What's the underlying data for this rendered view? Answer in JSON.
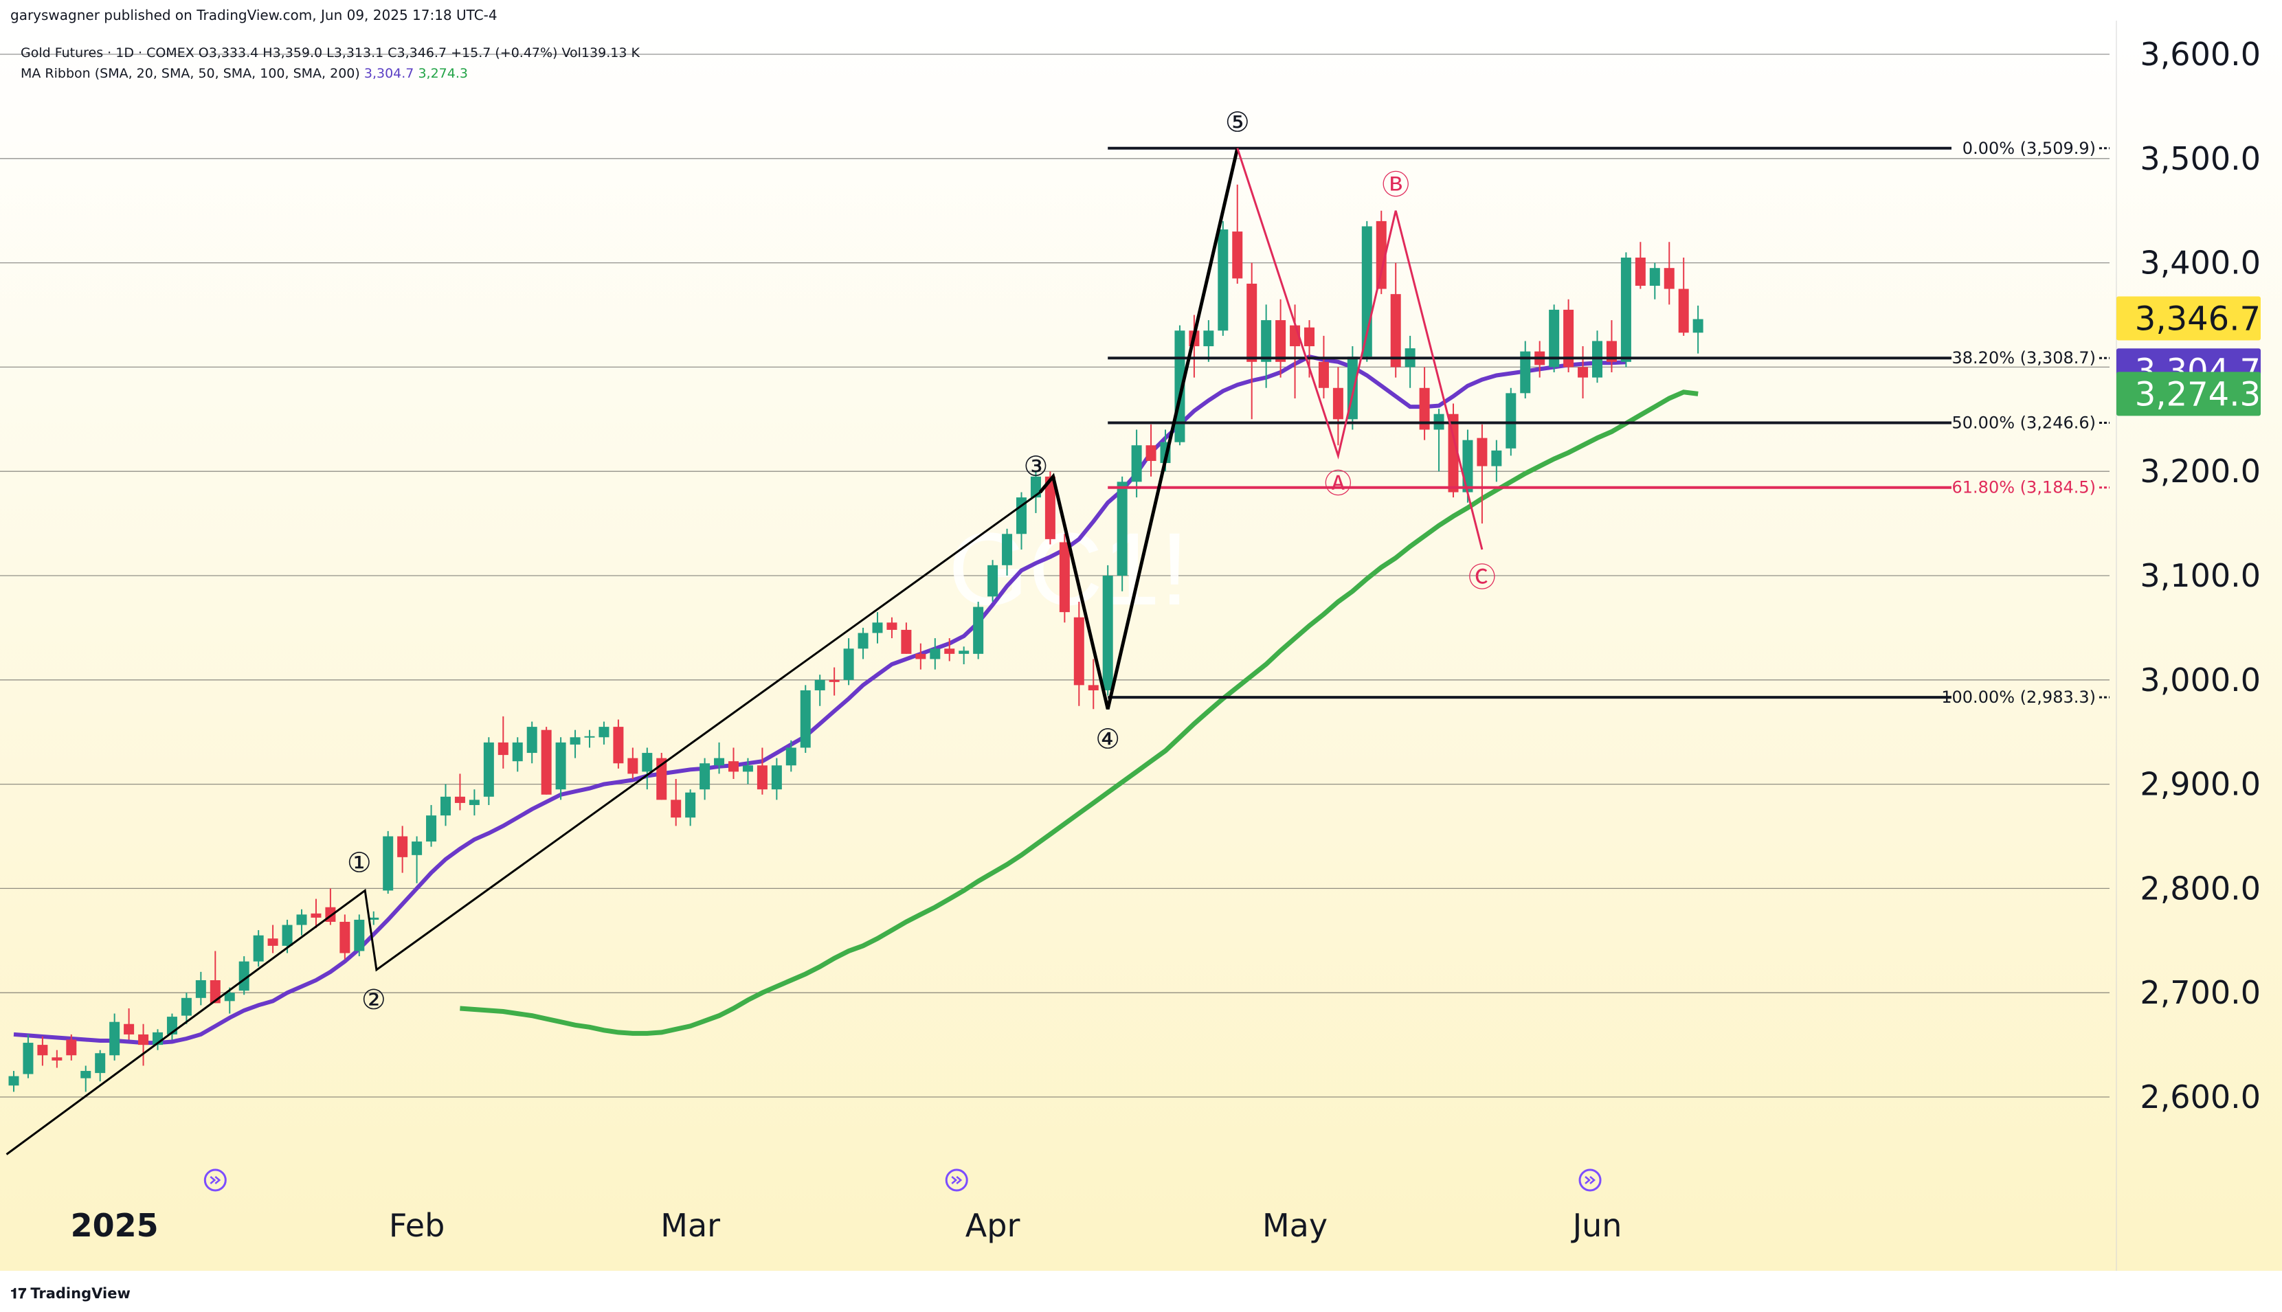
{
  "header": {
    "published": "garyswagner published on TradingView.com, Jun 09, 2025 17:18 UTC-4",
    "symbol_line": "Gold Futures · 1D · COMEX  O3,333.4  H3,359.0  L3,313.1  C3,346.7  +15.7 (+0.47%)  Vol139.13 K",
    "ma_label": "MA Ribbon (SMA, 20, SMA, 50, SMA, 100, SMA, 200)",
    "ma_value_1": "3,304.7",
    "ma_value_2": "3,274.3"
  },
  "footer": {
    "brand": "TradingView",
    "logo_glyph": "𝟏𝟕"
  },
  "watermark": "GC1!",
  "chart_data": {
    "type": "candlestick",
    "y_range": [
      2530,
      3650
    ],
    "y_ticks": [
      3600,
      3500,
      3400,
      3300,
      3200,
      3100,
      3000,
      2900,
      2800,
      2700,
      2600
    ],
    "y_tick_labels": [
      "3,600.0",
      "3,500.0",
      "3,400.0",
      "3,300.0",
      "3,200.0",
      "3,100.0",
      "3,000.0",
      "2,900.0",
      "2,800.0",
      "2,700.0",
      "2,600.0"
    ],
    "x_labels": [
      {
        "label": "2025",
        "bold": true,
        "index": 7
      },
      {
        "label": "Feb",
        "bold": false,
        "index": 28
      },
      {
        "label": "Mar",
        "bold": false,
        "index": 47
      },
      {
        "label": "Apr",
        "bold": false,
        "index": 68
      },
      {
        "label": "May",
        "bold": false,
        "index": 89
      },
      {
        "label": "Jun",
        "bold": false,
        "index": 110
      }
    ],
    "candles": [
      [
        2611,
        2625,
        2605,
        2620
      ],
      [
        2622,
        2660,
        2618,
        2652
      ],
      [
        2650,
        2658,
        2630,
        2640
      ],
      [
        2638,
        2645,
        2628,
        2635
      ],
      [
        2655,
        2660,
        2635,
        2640
      ],
      [
        2618,
        2630,
        2605,
        2625
      ],
      [
        2623,
        2645,
        2615,
        2642
      ],
      [
        2640,
        2680,
        2635,
        2672
      ],
      [
        2670,
        2685,
        2655,
        2660
      ],
      [
        2660,
        2670,
        2630,
        2650
      ],
      [
        2650,
        2665,
        2645,
        2662
      ],
      [
        2660,
        2680,
        2655,
        2677
      ],
      [
        2678,
        2700,
        2670,
        2695
      ],
      [
        2695,
        2720,
        2688,
        2712
      ],
      [
        2712,
        2740,
        2690,
        2690
      ],
      [
        2692,
        2705,
        2680,
        2700
      ],
      [
        2702,
        2735,
        2698,
        2730
      ],
      [
        2730,
        2760,
        2725,
        2755
      ],
      [
        2752,
        2765,
        2738,
        2745
      ],
      [
        2745,
        2770,
        2738,
        2765
      ],
      [
        2765,
        2780,
        2755,
        2775
      ],
      [
        2776,
        2790,
        2762,
        2772
      ],
      [
        2782,
        2800,
        2765,
        2768
      ],
      [
        2768,
        2775,
        2732,
        2738
      ],
      [
        2740,
        2775,
        2735,
        2770
      ],
      [
        2770,
        2778,
        2765,
        2772
      ],
      [
        2798,
        2855,
        2795,
        2850
      ],
      [
        2850,
        2860,
        2815,
        2830
      ],
      [
        2832,
        2850,
        2805,
        2845
      ],
      [
        2845,
        2880,
        2840,
        2870
      ],
      [
        2870,
        2900,
        2860,
        2888
      ],
      [
        2888,
        2910,
        2875,
        2882
      ],
      [
        2880,
        2895,
        2870,
        2885
      ],
      [
        2888,
        2945,
        2880,
        2940
      ],
      [
        2940,
        2965,
        2915,
        2928
      ],
      [
        2922,
        2945,
        2912,
        2940
      ],
      [
        2930,
        2960,
        2920,
        2955
      ],
      [
        2952,
        2955,
        2890,
        2890
      ],
      [
        2895,
        2945,
        2885,
        2940
      ],
      [
        2938,
        2952,
        2925,
        2945
      ],
      [
        2945,
        2952,
        2935,
        2946
      ],
      [
        2945,
        2960,
        2938,
        2955
      ],
      [
        2955,
        2962,
        2915,
        2920
      ],
      [
        2925,
        2935,
        2905,
        2910
      ],
      [
        2912,
        2935,
        2895,
        2930
      ],
      [
        2925,
        2930,
        2885,
        2885
      ],
      [
        2885,
        2905,
        2860,
        2868
      ],
      [
        2868,
        2895,
        2860,
        2892
      ],
      [
        2895,
        2925,
        2885,
        2920
      ],
      [
        2918,
        2940,
        2910,
        2925
      ],
      [
        2922,
        2935,
        2905,
        2912
      ],
      [
        2912,
        2925,
        2900,
        2918
      ],
      [
        2918,
        2935,
        2890,
        2895
      ],
      [
        2895,
        2925,
        2885,
        2918
      ],
      [
        2918,
        2942,
        2912,
        2935
      ],
      [
        2935,
        2995,
        2930,
        2990
      ],
      [
        2990,
        3005,
        2975,
        3000
      ],
      [
        3000,
        3012,
        2985,
        2998
      ],
      [
        3000,
        3040,
        2995,
        3030
      ],
      [
        3030,
        3050,
        3020,
        3045
      ],
      [
        3045,
        3065,
        3035,
        3055
      ],
      [
        3055,
        3060,
        3040,
        3048
      ],
      [
        3048,
        3055,
        3025,
        3025
      ],
      [
        3025,
        3035,
        3010,
        3020
      ],
      [
        3020,
        3040,
        3010,
        3030
      ],
      [
        3030,
        3040,
        3018,
        3025
      ],
      [
        3025,
        3032,
        3015,
        3028
      ],
      [
        3025,
        3075,
        3020,
        3070
      ],
      [
        3080,
        3115,
        3075,
        3110
      ],
      [
        3110,
        3145,
        3100,
        3140
      ],
      [
        3140,
        3180,
        3125,
        3175
      ],
      [
        3175,
        3200,
        3160,
        3195
      ],
      [
        3195,
        3200,
        3130,
        3135
      ],
      [
        3132,
        3140,
        3055,
        3065
      ],
      [
        3060,
        3075,
        2975,
        2995
      ],
      [
        2995,
        3020,
        2972,
        2990
      ],
      [
        2990,
        3110,
        2985,
        3100
      ],
      [
        3100,
        3195,
        3085,
        3190
      ],
      [
        3190,
        3240,
        3175,
        3225
      ],
      [
        3225,
        3245,
        3195,
        3210
      ],
      [
        3208,
        3240,
        3200,
        3228
      ],
      [
        3228,
        3340,
        3225,
        3335
      ],
      [
        3335,
        3350,
        3290,
        3320
      ],
      [
        3320,
        3345,
        3305,
        3335
      ],
      [
        3335,
        3440,
        3330,
        3432
      ],
      [
        3430,
        3475,
        3380,
        3385
      ],
      [
        3380,
        3400,
        3250,
        3305
      ],
      [
        3305,
        3360,
        3280,
        3345
      ],
      [
        3345,
        3365,
        3290,
        3305
      ],
      [
        3340,
        3360,
        3270,
        3320
      ],
      [
        3338,
        3345,
        3290,
        3320
      ],
      [
        3305,
        3330,
        3270,
        3280
      ],
      [
        3280,
        3300,
        3225,
        3250
      ],
      [
        3250,
        3320,
        3240,
        3310
      ],
      [
        3310,
        3440,
        3305,
        3435
      ],
      [
        3440,
        3450,
        3370,
        3375
      ],
      [
        3370,
        3400,
        3290,
        3300
      ],
      [
        3300,
        3330,
        3280,
        3318
      ],
      [
        3280,
        3300,
        3230,
        3240
      ],
      [
        3240,
        3260,
        3200,
        3255
      ],
      [
        3255,
        3265,
        3175,
        3180
      ],
      [
        3180,
        3240,
        3170,
        3230
      ],
      [
        3232,
        3245,
        3150,
        3205
      ],
      [
        3205,
        3230,
        3190,
        3220
      ],
      [
        3222,
        3280,
        3215,
        3275
      ],
      [
        3275,
        3325,
        3270,
        3315
      ],
      [
        3315,
        3325,
        3290,
        3302
      ],
      [
        3300,
        3360,
        3295,
        3355
      ],
      [
        3355,
        3365,
        3295,
        3300
      ],
      [
        3300,
        3320,
        3270,
        3290
      ],
      [
        3290,
        3335,
        3285,
        3325
      ],
      [
        3325,
        3345,
        3295,
        3305
      ],
      [
        3305,
        3410,
        3300,
        3405
      ],
      [
        3405,
        3420,
        3375,
        3378
      ],
      [
        3378,
        3400,
        3365,
        3395
      ],
      [
        3395,
        3420,
        3360,
        3375
      ],
      [
        3375,
        3405,
        3330,
        3333
      ],
      [
        3333,
        3359,
        3313,
        3346
      ]
    ],
    "sma20": [
      2660,
      2659,
      2658,
      2657,
      2656,
      2655,
      2654,
      2654,
      2653,
      2652,
      2652,
      2653,
      2656,
      2660,
      2668,
      2676,
      2683,
      2688,
      2692,
      2700,
      2706,
      2712,
      2720,
      2730,
      2742,
      2756,
      2770,
      2785,
      2800,
      2815,
      2828,
      2838,
      2847,
      2853,
      2860,
      2868,
      2876,
      2883,
      2890,
      2893,
      2896,
      2900,
      2902,
      2904,
      2908,
      2910,
      2912,
      2914,
      2915,
      2917,
      2918,
      2920,
      2922,
      2930,
      2938,
      2946,
      2958,
      2970,
      2982,
      2995,
      3005,
      3015,
      3020,
      3025,
      3030,
      3035,
      3042,
      3055,
      3072,
      3090,
      3105,
      3112,
      3118,
      3125,
      3135,
      3152,
      3170,
      3182,
      3198,
      3218,
      3232,
      3245,
      3258,
      3268,
      3277,
      3283,
      3287,
      3290,
      3295,
      3303,
      3310,
      3307,
      3305,
      3300,
      3292,
      3282,
      3272,
      3262,
      3262,
      3263,
      3272,
      3282,
      3288,
      3292,
      3294,
      3296,
      3298,
      3300,
      3302,
      3303,
      3304,
      3304,
      3304.7
    ],
    "sma50": [
      2685,
      2684,
      2683,
      2682,
      2680,
      2678,
      2675,
      2672,
      2669,
      2667,
      2664,
      2662,
      2661,
      2661,
      2662,
      2665,
      2668,
      2673,
      2678,
      2685,
      2693,
      2700,
      2706,
      2712,
      2718,
      2725,
      2733,
      2740,
      2745,
      2752,
      2760,
      2768,
      2775,
      2782,
      2790,
      2798,
      2807,
      2815,
      2823,
      2832,
      2842,
      2852,
      2862,
      2872,
      2882,
      2892,
      2902,
      2912,
      2922,
      2932,
      2945,
      2958,
      2970,
      2982,
      2993,
      3004,
      3015,
      3028,
      3040,
      3052,
      3063,
      3075,
      3085,
      3097,
      3108,
      3117,
      3128,
      3138,
      3148,
      3157,
      3165,
      3174,
      3182,
      3190,
      3198,
      3205,
      3212,
      3218,
      3225,
      3232,
      3238,
      3246,
      3254,
      3262,
      3270,
      3276,
      3274.3
    ],
    "fib_levels": [
      {
        "pct": "0.00%",
        "value": 3509.9,
        "text": "0.00% (3,509.9)",
        "color": "#131722"
      },
      {
        "pct": "38.20%",
        "value": 3308.7,
        "text": "38.20% (3,308.7)",
        "color": "#131722"
      },
      {
        "pct": "50.00%",
        "value": 3246.6,
        "text": "50.00% (3,246.6)",
        "color": "#131722"
      },
      {
        "pct": "61.80%",
        "value": 3184.5,
        "text": "61.80% (3,184.5)",
        "color": "#e02a5a"
      },
      {
        "pct": "100.00%",
        "value": 2983.3,
        "text": "100.00% (2,983.3)",
        "color": "#131722"
      }
    ],
    "wave_labels": [
      {
        "label": "①",
        "index": 24,
        "price": 2800,
        "pos": "above"
      },
      {
        "label": "②",
        "index": 25,
        "price": 2720,
        "pos": "below"
      },
      {
        "label": "③",
        "index": 71,
        "price": 3180,
        "pos": "above"
      },
      {
        "label": "④",
        "index": 76,
        "price": 2970,
        "pos": "below"
      },
      {
        "label": "⑤",
        "index": 85,
        "price": 3510,
        "pos": "above"
      }
    ],
    "abc_labels": [
      {
        "label": "Ⓐ",
        "index": 92,
        "price": 3215,
        "pos": "below"
      },
      {
        "label": "Ⓑ",
        "index": 96,
        "price": 3450,
        "pos": "above"
      },
      {
        "label": "Ⓒ",
        "index": 102,
        "price": 3125,
        "pos": "below"
      }
    ],
    "price_tags": [
      {
        "text": "3,346.7",
        "value": 3346.7,
        "bg": "#ffe23f",
        "fg": "#131722"
      },
      {
        "text": "3,304.7",
        "value": 3304.7,
        "bg": "#5b3fc4",
        "fg": "#ffffff"
      },
      {
        "text": "3,274.3",
        "value": 3274.3,
        "bg": "#3fae59",
        "fg": "#ffffff"
      }
    ],
    "colors": {
      "up": "#22a082",
      "down": "#e8394a",
      "sma20": "#6a38c9",
      "sma50": "#3fae49",
      "fib_red": "#e02a5a",
      "bg_top": "#ffffff",
      "bg_bottom": "#fdf4c6"
    }
  }
}
